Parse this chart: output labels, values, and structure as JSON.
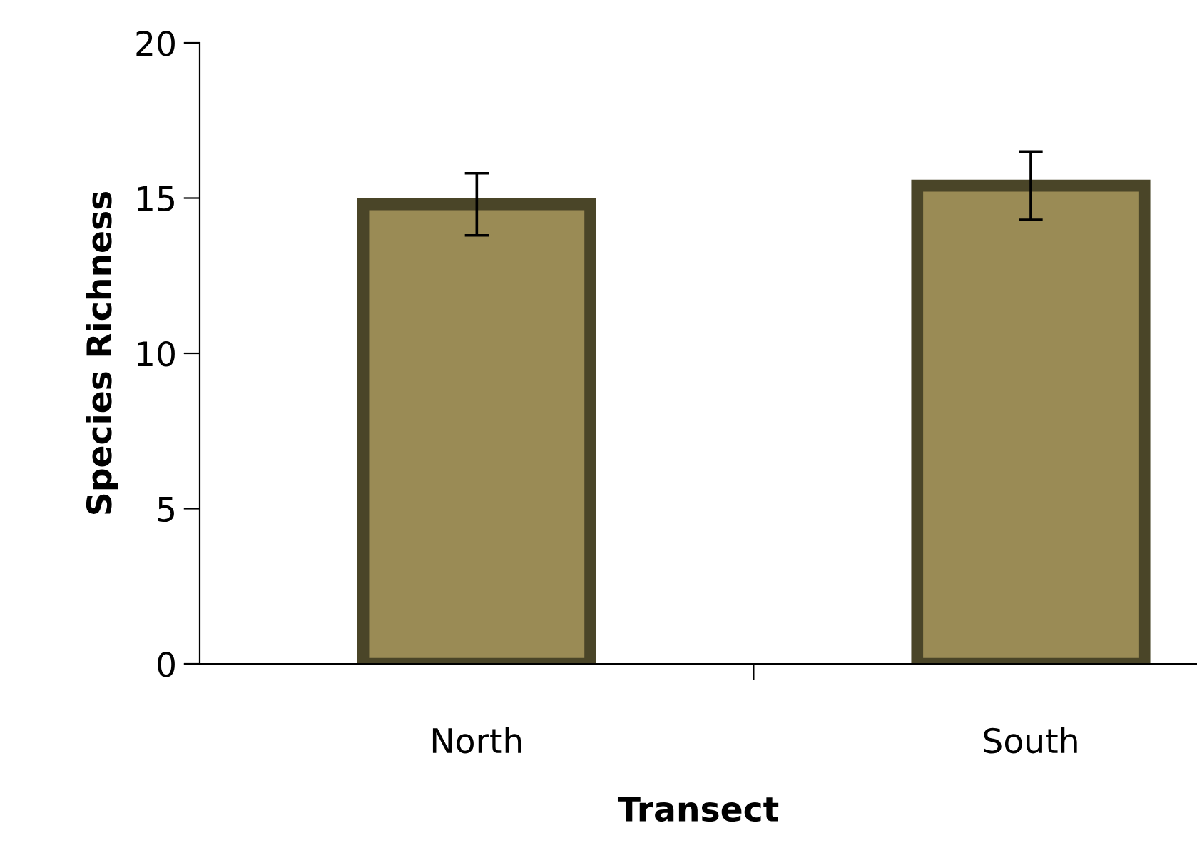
{
  "chart_data": {
    "type": "bar",
    "xlabel": "Transect",
    "ylabel": "Species Richness",
    "categories": [
      "North",
      "South"
    ],
    "values": [
      14.8,
      15.4
    ],
    "errors": [
      1.0,
      1.1
    ],
    "color": "#9a8b55",
    "ylim": [
      0,
      20
    ],
    "yticks": [
      0,
      5,
      10,
      15,
      20
    ],
    "grid": false,
    "legend": false
  }
}
